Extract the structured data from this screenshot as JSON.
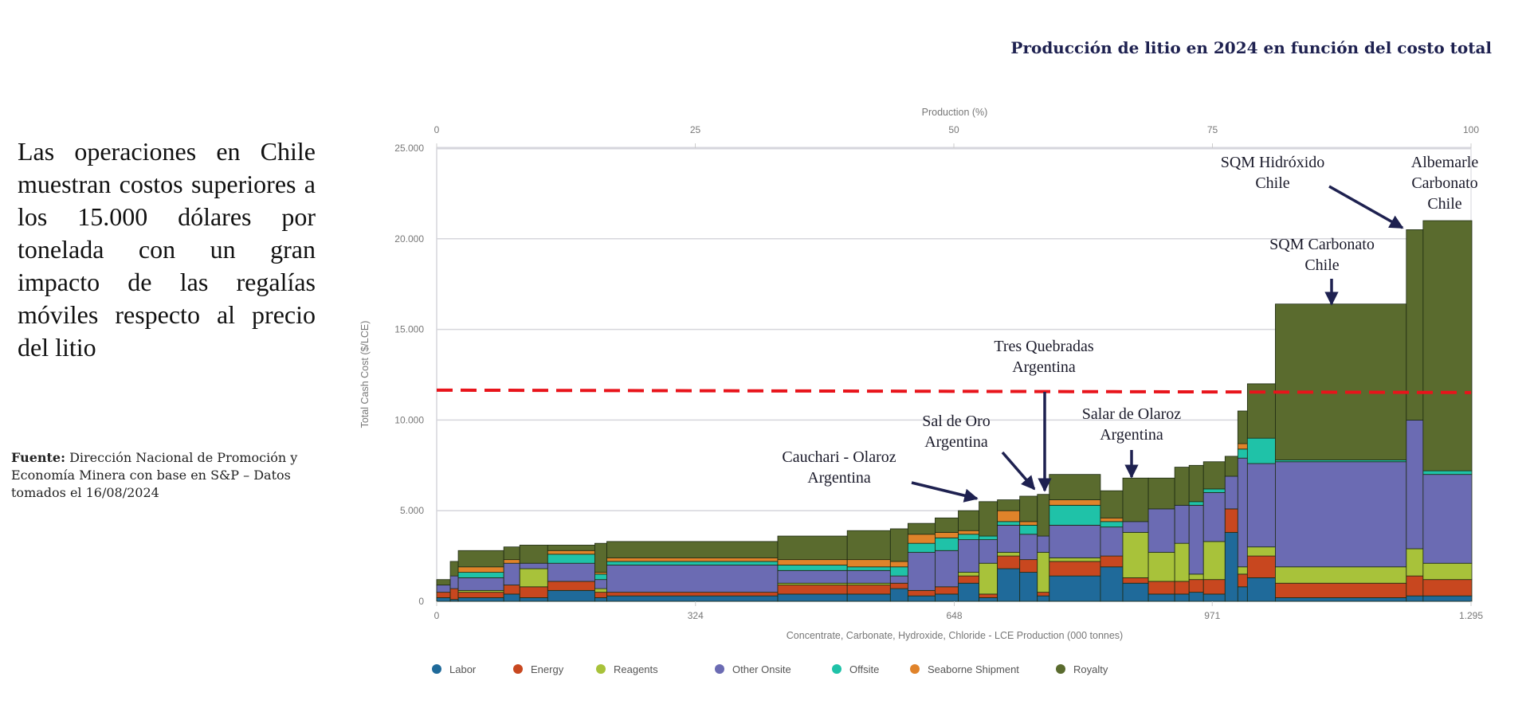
{
  "title": "Producción de litio en 2024 en función del costo total",
  "lead_text": "Las operaciones en Chile muestran costos superiores a los 15.000 dólares por tonelada con un gran impacto de las regalías móviles respecto al precio del litio",
  "source": {
    "label": "Fuente:",
    "text": " Dirección Nacional de Promoción y Economía Minera con base en S&P – Datos tomados el 16/08/2024"
  },
  "chart_data": {
    "type": "bar",
    "subtype": "stacked cost curve (variable-width bars)",
    "xlabel": "Concentrate, Carbonate, Hydroxide, Chloride - LCE Production (000 tonnes)",
    "x2label": "Production (%)",
    "ylabel": "Total Cash Cost ($/LCE)",
    "xlim": [
      0,
      1295
    ],
    "ylim": [
      0,
      25000
    ],
    "x_ticks": [
      {
        "value": 0,
        "label": "0"
      },
      {
        "value": 324,
        "label": "324"
      },
      {
        "value": 648,
        "label": "648"
      },
      {
        "value": 971,
        "label": "971"
      },
      {
        "value": 1295,
        "label": "1.295"
      }
    ],
    "x2_ticks": [
      {
        "value": 0,
        "label": "0"
      },
      {
        "value": 25,
        "label": "25"
      },
      {
        "value": 50,
        "label": "50"
      },
      {
        "value": 75,
        "label": "75"
      },
      {
        "value": 100,
        "label": "100"
      }
    ],
    "y_ticks": [
      {
        "value": 0,
        "label": "0"
      },
      {
        "value": 5000,
        "label": "5.000"
      },
      {
        "value": 10000,
        "label": "10.000"
      },
      {
        "value": 15000,
        "label": "15.000"
      },
      {
        "value": 20000,
        "label": "20.000"
      },
      {
        "value": 25000,
        "label": "25.000"
      }
    ],
    "grid": true,
    "legend_position": "bottom-left",
    "series": [
      {
        "name": "Labor",
        "color": "#1f6a9a"
      },
      {
        "name": "Energy",
        "color": "#c8471f"
      },
      {
        "name": "Reagents",
        "color": "#a8c23a"
      },
      {
        "name": "Other Onsite",
        "color": "#6b6bb3"
      },
      {
        "name": "Offsite",
        "color": "#1fc2a8"
      },
      {
        "name": "Seaborne Shipment",
        "color": "#e0832a"
      },
      {
        "name": "Royalty",
        "color": "#5a6b2e"
      }
    ],
    "bars": [
      {
        "production": 17,
        "costs": [
          200,
          300,
          0,
          400,
          0,
          0,
          300
        ]
      },
      {
        "production": 10,
        "costs": [
          100,
          600,
          0,
          700,
          0,
          0,
          800
        ]
      },
      {
        "production": 57,
        "costs": [
          200,
          300,
          100,
          700,
          300,
          300,
          900
        ]
      },
      {
        "production": 20,
        "costs": [
          400,
          500,
          0,
          1200,
          0,
          200,
          700
        ]
      },
      {
        "production": 35,
        "costs": [
          200,
          600,
          1000,
          300,
          0,
          0,
          1000
        ]
      },
      {
        "production": 59,
        "costs": [
          600,
          500,
          0,
          1000,
          500,
          200,
          300
        ]
      },
      {
        "production": 15,
        "costs": [
          200,
          300,
          200,
          500,
          300,
          100,
          1600
        ]
      },
      {
        "production": 214,
        "costs": [
          300,
          200,
          0,
          1500,
          200,
          200,
          900
        ]
      },
      {
        "production": 87,
        "costs": [
          400,
          500,
          100,
          700,
          300,
          300,
          1300
        ]
      },
      {
        "production": 54,
        "costs": [
          400,
          500,
          100,
          700,
          200,
          400,
          1600
        ]
      },
      {
        "production": 22,
        "costs": [
          700,
          300,
          0,
          400,
          500,
          300,
          1800
        ]
      },
      {
        "production": 34,
        "costs": [
          300,
          300,
          0,
          2100,
          500,
          500,
          600
        ]
      },
      {
        "production": 29,
        "costs": [
          400,
          400,
          0,
          2000,
          700,
          300,
          800
        ]
      },
      {
        "production": 26,
        "costs": [
          1000,
          400,
          200,
          1800,
          300,
          200,
          1100
        ]
      },
      {
        "production": 23,
        "costs": [
          200,
          200,
          1700,
          1300,
          200,
          0,
          1900
        ]
      },
      {
        "production": 28,
        "costs": [
          1800,
          700,
          200,
          1500,
          200,
          600,
          600
        ]
      },
      {
        "production": 22,
        "costs": [
          1600,
          700,
          0,
          1400,
          500,
          200,
          1400
        ]
      },
      {
        "production": 15,
        "costs": [
          300,
          200,
          2200,
          900,
          0,
          0,
          2300
        ]
      },
      {
        "production": 64,
        "costs": [
          1400,
          800,
          200,
          1800,
          1100,
          300,
          1400
        ]
      },
      {
        "production": 28,
        "costs": [
          1900,
          600,
          0,
          1600,
          300,
          200,
          1500
        ]
      },
      {
        "production": 32,
        "costs": [
          1000,
          300,
          2500,
          600,
          0,
          0,
          2400
        ]
      },
      {
        "production": 33,
        "costs": [
          400,
          700,
          1600,
          2400,
          0,
          0,
          1700
        ]
      },
      {
        "production": 18,
        "costs": [
          400,
          700,
          2100,
          2100,
          0,
          0,
          2100
        ]
      },
      {
        "production": 18,
        "costs": [
          500,
          700,
          300,
          3800,
          200,
          0,
          2000
        ]
      },
      {
        "production": 27,
        "costs": [
          400,
          800,
          2100,
          2700,
          200,
          0,
          1500
        ]
      },
      {
        "production": 16,
        "costs": [
          3800,
          1300,
          0,
          1800,
          0,
          0,
          1100
        ]
      },
      {
        "production": 12,
        "costs": [
          800,
          700,
          400,
          6000,
          500,
          300,
          1800
        ]
      },
      {
        "production": 35,
        "costs": [
          1300,
          1200,
          500,
          4600,
          1400,
          0,
          3000
        ]
      },
      {
        "production": 164,
        "costs": [
          200,
          800,
          900,
          5800,
          100,
          0,
          8600
        ]
      },
      {
        "production": 21,
        "costs": [
          300,
          1100,
          1500,
          7100,
          0,
          0,
          10500
        ]
      },
      {
        "production": 61,
        "costs": [
          300,
          900,
          900,
          4900,
          200,
          0,
          13800
        ]
      }
    ],
    "reference_line": {
      "value": 11650,
      "color": "#e8141b",
      "style": "dashed"
    },
    "annotations": [
      {
        "lines": [
          "SQM Hidróxido",
          "Chile"
        ]
      },
      {
        "lines": [
          "Albemarle",
          "Carbonato",
          "Chile"
        ]
      },
      {
        "lines": [
          "SQM Carbonato",
          "Chile"
        ]
      },
      {
        "lines": [
          "Tres Quebradas",
          "Argentina"
        ]
      },
      {
        "lines": [
          "Sal de Oro",
          "Argentina"
        ]
      },
      {
        "lines": [
          "Salar de Olaroz",
          "Argentina"
        ]
      },
      {
        "lines": [
          "Cauchari - Olaroz",
          "Argentina"
        ]
      }
    ]
  }
}
